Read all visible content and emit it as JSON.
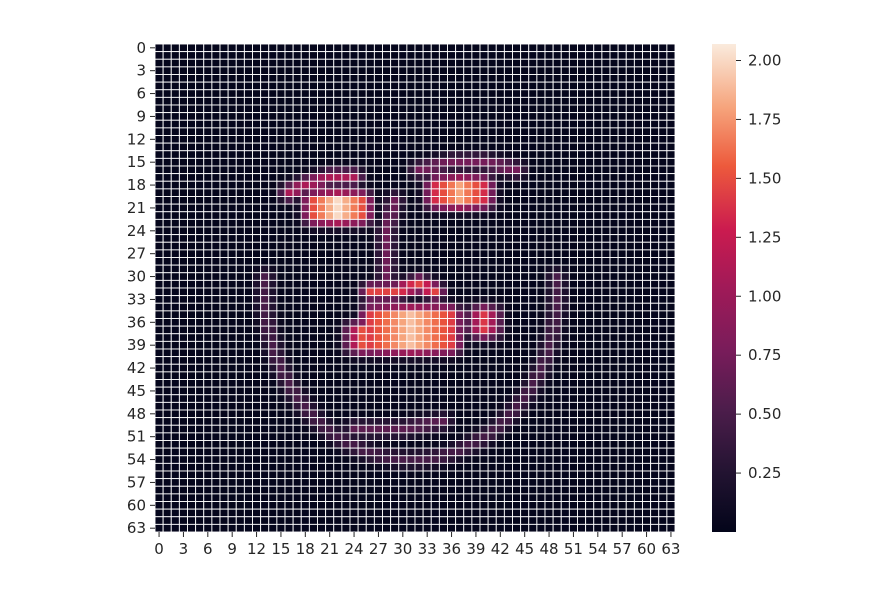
{
  "chart_data": {
    "type": "heatmap",
    "title": "",
    "xlabel": "",
    "ylabel": "",
    "rows": 64,
    "cols": 64,
    "x_tick_labels": [
      "0",
      "3",
      "6",
      "9",
      "12",
      "15",
      "18",
      "21",
      "24",
      "27",
      "30",
      "33",
      "36",
      "39",
      "42",
      "45",
      "48",
      "51",
      "54",
      "57",
      "60",
      "63"
    ],
    "y_tick_labels": [
      "0",
      "3",
      "6",
      "9",
      "12",
      "15",
      "18",
      "21",
      "24",
      "27",
      "30",
      "33",
      "36",
      "39",
      "42",
      "45",
      "48",
      "51",
      "54",
      "57",
      "60",
      "63"
    ],
    "colorbar": {
      "min": 0.0,
      "max": 2.07,
      "ticks": [
        0.25,
        0.5,
        0.75,
        1.0,
        1.25,
        1.5,
        1.75,
        2.0
      ],
      "tick_labels": [
        "0.25",
        "0.50",
        "0.75",
        "1.00",
        "1.25",
        "1.50",
        "1.75",
        "2.00"
      ]
    },
    "colormap": "rocket",
    "grid": true,
    "grid_color": "#ffffff",
    "features": [
      {
        "name": "face-outline",
        "type": "ellipse-arc",
        "cx": 31,
        "cy": 32,
        "rx": 18,
        "ry": 22,
        "start_deg": -5,
        "end_deg": 185,
        "value": 0.5
      },
      {
        "name": "left-brow",
        "type": "polyline",
        "points": [
          [
            16,
            19
          ],
          [
            18,
            18
          ],
          [
            21,
            17
          ],
          [
            24,
            17
          ]
        ],
        "value": 1.1
      },
      {
        "name": "right-brow",
        "type": "polyline",
        "points": [
          [
            32,
            16
          ],
          [
            36,
            15
          ],
          [
            40,
            15
          ],
          [
            44,
            16
          ]
        ],
        "value": 0.75
      },
      {
        "name": "left-eye",
        "type": "blob",
        "cx": 22,
        "cy": 21,
        "rx": 3,
        "ry": 1,
        "value": 2.0
      },
      {
        "name": "right-eye",
        "type": "blob",
        "cx": 37,
        "cy": 19,
        "rx": 3,
        "ry": 1,
        "value": 1.8
      },
      {
        "name": "nose-bridge",
        "type": "polyline",
        "points": [
          [
            29,
            20
          ],
          [
            28,
            24
          ],
          [
            28,
            28
          ],
          [
            28,
            31
          ]
        ],
        "value": 0.7
      },
      {
        "name": "nostrils",
        "type": "polyline",
        "points": [
          [
            26,
            32
          ],
          [
            29,
            32
          ],
          [
            32,
            31
          ],
          [
            34,
            32
          ]
        ],
        "value": 1.45
      },
      {
        "name": "mouth",
        "type": "blob",
        "cx": 31,
        "cy": 37,
        "rx": 5,
        "ry": 2,
        "value": 1.9
      },
      {
        "name": "mouth-left",
        "type": "blob",
        "cx": 25,
        "cy": 38,
        "rx": 1,
        "ry": 1,
        "value": 1.5
      },
      {
        "name": "mouth-right",
        "type": "blob",
        "cx": 40,
        "cy": 36,
        "rx": 1,
        "ry": 1,
        "value": 1.4
      },
      {
        "name": "chin",
        "type": "polyline",
        "points": [
          [
            24,
            50
          ],
          [
            30,
            50
          ],
          [
            35,
            49
          ]
        ],
        "value": 0.6
      }
    ]
  }
}
